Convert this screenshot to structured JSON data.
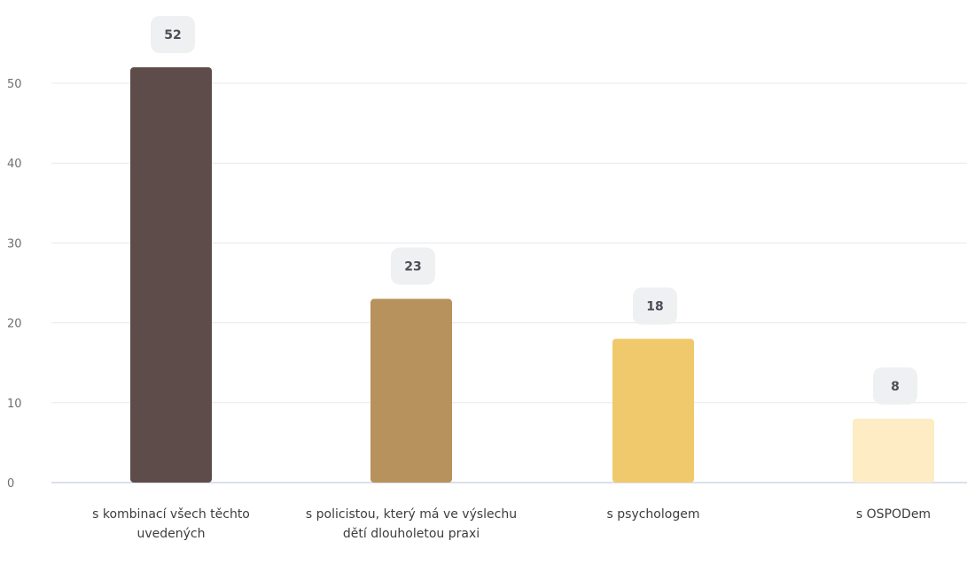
{
  "chart_data": {
    "type": "bar",
    "categories": [
      "s kombinací všech těchto uvedených",
      "s policistou, který má ve výslechu dětí dlouholetou praxi",
      "s psychologem",
      "s OSPODem"
    ],
    "values": [
      52,
      23,
      18,
      8
    ],
    "colors": [
      "#5e4c4a",
      "#b8925c",
      "#f0c96c",
      "#fdecc4"
    ],
    "ylim": [
      0,
      55
    ],
    "yticks": [
      0,
      10,
      20,
      30,
      40,
      50
    ],
    "grid": true,
    "title": "",
    "xlabel": "",
    "ylabel": ""
  }
}
